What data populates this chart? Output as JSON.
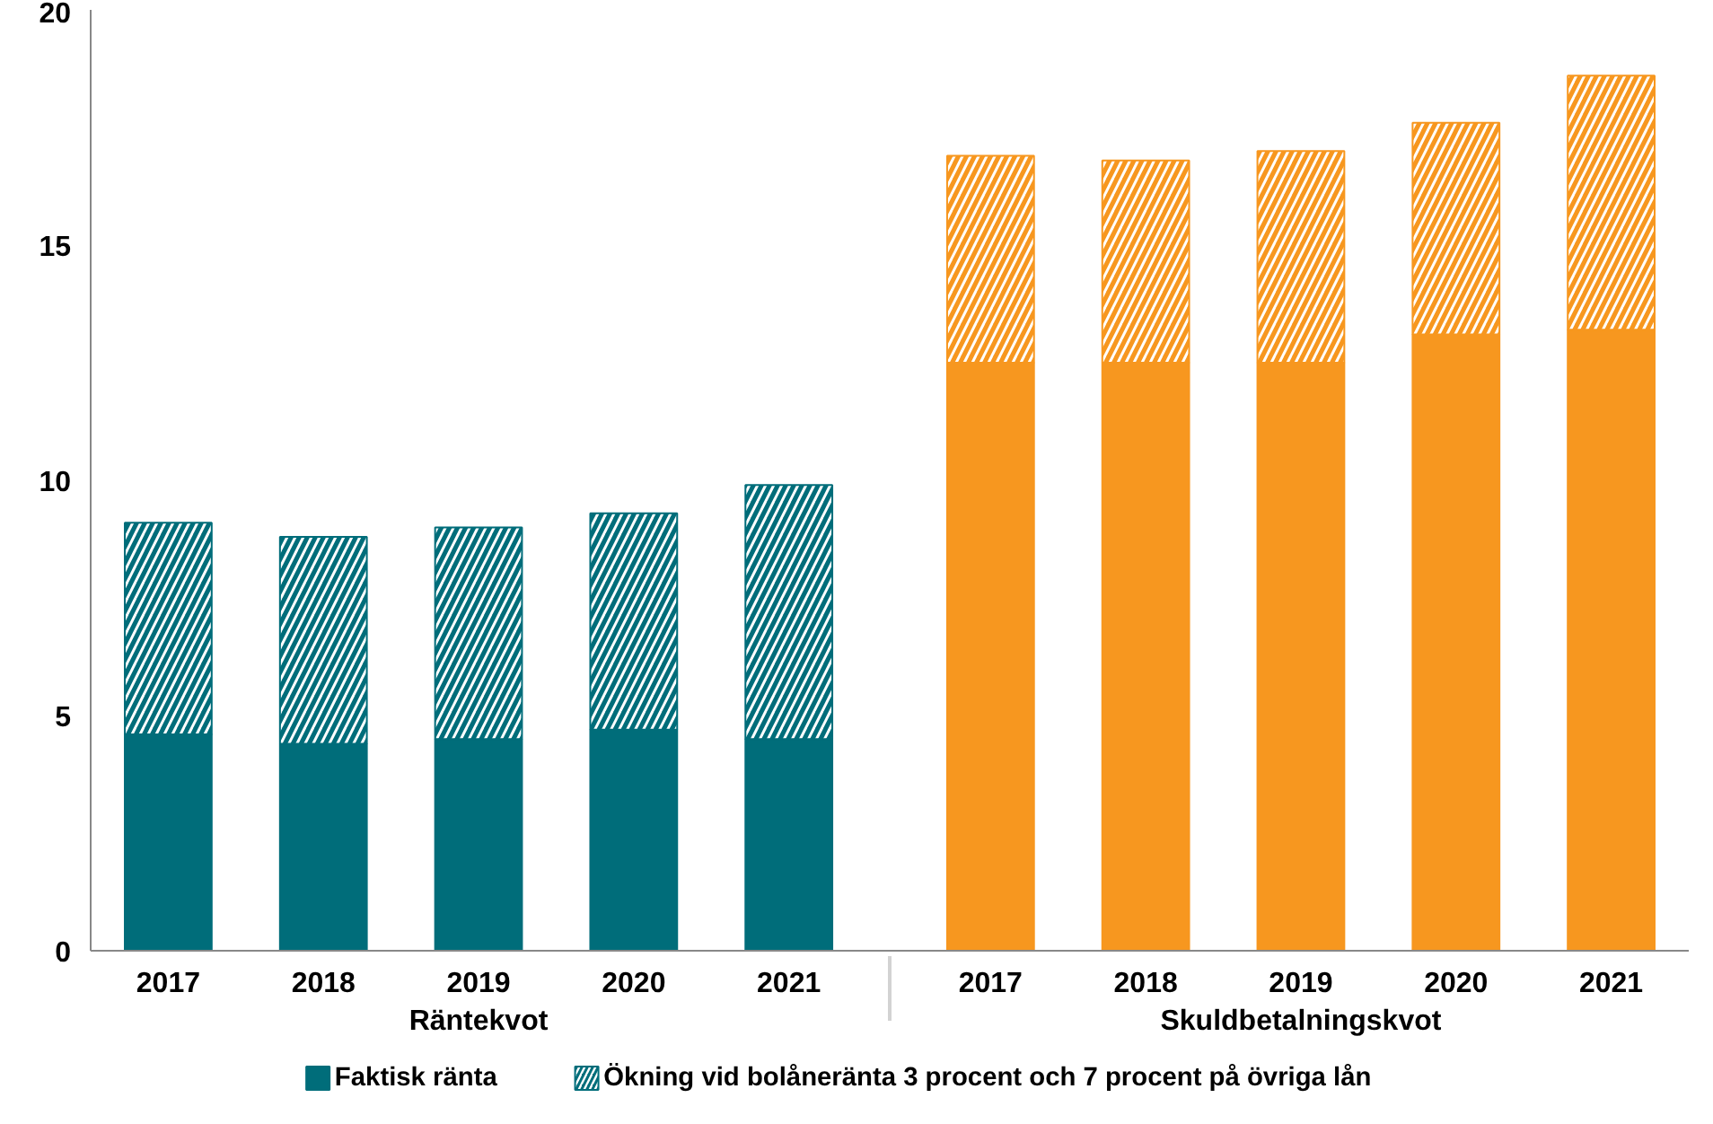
{
  "chart_data": {
    "type": "bar",
    "stacked": true,
    "categories": [
      "2017",
      "2018",
      "2019",
      "2020",
      "2021",
      "2017",
      "2018",
      "2019",
      "2020",
      "2021"
    ],
    "annotations": [
      "Räntekvot",
      "Skuldbetalningskvot"
    ],
    "series": [
      {
        "name": "Faktisk ränta",
        "colors": [
          "#006d7a",
          "#006d7a",
          "#006d7a",
          "#006d7a",
          "#006d7a",
          "#f7971f",
          "#f7971f",
          "#f7971f",
          "#f7971f",
          "#f7971f"
        ],
        "values": [
          4.6,
          4.4,
          4.5,
          4.7,
          4.5,
          12.5,
          12.5,
          12.5,
          13.1,
          13.2
        ]
      },
      {
        "name": "Ökning vid bolåneränta 3 procent och 7 procent på övriga lån",
        "colors": [
          "#006d7a",
          "#006d7a",
          "#006d7a",
          "#006d7a",
          "#006d7a",
          "#f7971f",
          "#f7971f",
          "#f7971f",
          "#f7971f",
          "#f7971f"
        ],
        "values": [
          4.5,
          4.4,
          4.5,
          4.6,
          5.4,
          4.4,
          4.3,
          4.5,
          4.5,
          5.4
        ]
      }
    ],
    "ylim": [
      0,
      20
    ],
    "yticks": [
      0,
      5,
      10,
      15,
      20
    ],
    "grid": false,
    "legend": "bottom"
  }
}
